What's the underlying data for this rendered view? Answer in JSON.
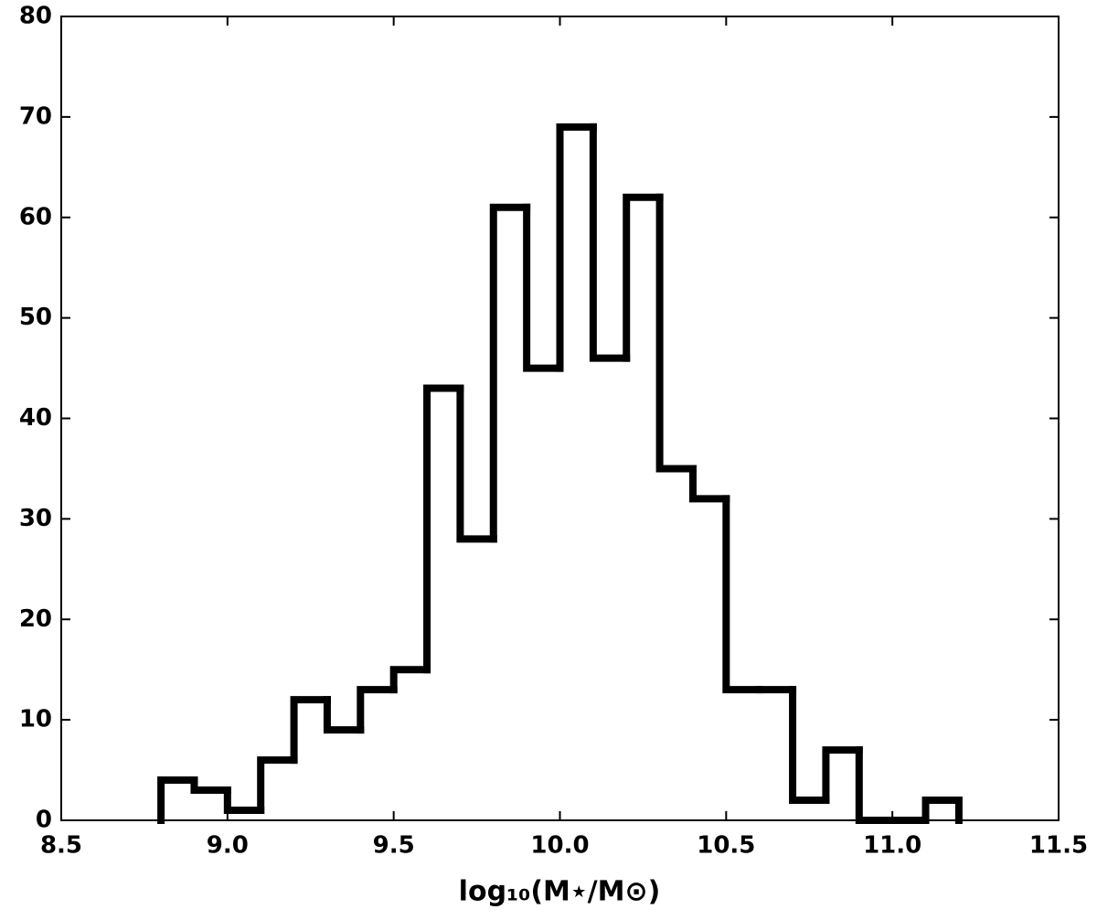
{
  "chart_data": {
    "type": "histogram",
    "x_label": "log₁₀(M⋆/M⊙)",
    "bins": [
      8.8,
      8.9,
      9.0,
      9.1,
      9.2,
      9.3,
      9.4,
      9.5,
      9.6,
      9.7,
      9.8,
      9.9,
      10.0,
      10.1,
      10.2,
      10.3,
      10.4,
      10.5,
      10.6,
      10.7,
      10.8,
      10.9,
      11.0,
      11.1,
      11.2
    ],
    "values": [
      4,
      3,
      1,
      6,
      12,
      9,
      13,
      15,
      43,
      28,
      61,
      45,
      69,
      46,
      62,
      35,
      32,
      13,
      13,
      2,
      7,
      0,
      0,
      2
    ],
    "color": "#000000",
    "xlim": [
      8.5,
      11.5
    ],
    "xticks": [
      8.5,
      {
        "value": 9,
        "label": "9.0"
      },
      9.5,
      {
        "value": 10,
        "label": "10.0"
      },
      10.5,
      {
        "value": 11,
        "label": "11.0"
      },
      11.5
    ],
    "ylim": [
      0,
      80
    ],
    "yticks": [
      0,
      10,
      20,
      30,
      40,
      50,
      60,
      70,
      80
    ],
    "grid": false
  }
}
